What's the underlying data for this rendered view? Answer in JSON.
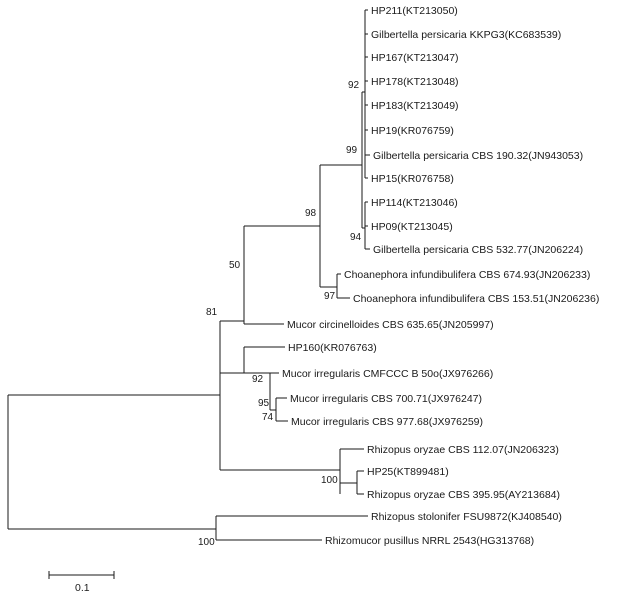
{
  "taxa": [
    {
      "id": "t1",
      "label": "HP211(KT213050)"
    },
    {
      "id": "t2",
      "label": "Gilbertella persicaria KKPG3(KC683539)"
    },
    {
      "id": "t3",
      "label": "HP167(KT213047)"
    },
    {
      "id": "t4",
      "label": "HP178(KT213048)"
    },
    {
      "id": "t5",
      "label": "HP183(KT213049)"
    },
    {
      "id": "t6",
      "label": "HP19(KR076759)"
    },
    {
      "id": "t7",
      "label": "Gilbertella persicaria CBS 190.32(JN943053)"
    },
    {
      "id": "t8",
      "label": "HP15(KR076758)"
    },
    {
      "id": "t9",
      "label": "HP114(KT213046)"
    },
    {
      "id": "t10",
      "label": "HP09(KT213045)"
    },
    {
      "id": "t11",
      "label": "Gilbertella persicaria CBS 532.77(JN206224)"
    },
    {
      "id": "t12",
      "label": "Choanephora infundibulifera CBS 674.93(JN206233)"
    },
    {
      "id": "t13",
      "label": "Choanephora infundibulifera CBS 153.51(JN206236)"
    },
    {
      "id": "t14",
      "label": "Mucor circinelloides CBS 635.65(JN205997)"
    },
    {
      "id": "t15",
      "label": "HP160(KR076763)"
    },
    {
      "id": "t16",
      "label": "Mucor irregularis CMFCCC B 50o(JX976266)"
    },
    {
      "id": "t17",
      "label": "Mucor irregularis CBS 700.71(JX976247)"
    },
    {
      "id": "t18",
      "label": "Mucor irregularis CBS 977.68(JX976259)"
    },
    {
      "id": "t19",
      "label": "Rhizopus oryzae CBS 112.07(JN206323)"
    },
    {
      "id": "t20",
      "label": "HP25(KT899481)"
    },
    {
      "id": "t21",
      "label": "Rhizopus oryzae CBS 395.95(AY213684)"
    },
    {
      "id": "t22",
      "label": "Rhizopus stolonifer FSU9872(KJ408540)"
    },
    {
      "id": "t23",
      "label": "Rhizomucor pusillus NRRL 2543(HG313768)"
    }
  ],
  "bootstrap": {
    "n92a": "92",
    "n99": "99",
    "n98": "98",
    "n94": "94",
    "n50": "50",
    "n97": "97",
    "n81": "81",
    "n92b": "92",
    "n95": "95",
    "n74": "74",
    "n100a": "100",
    "n100b": "100"
  },
  "scale_bar": {
    "label": "0.1"
  }
}
